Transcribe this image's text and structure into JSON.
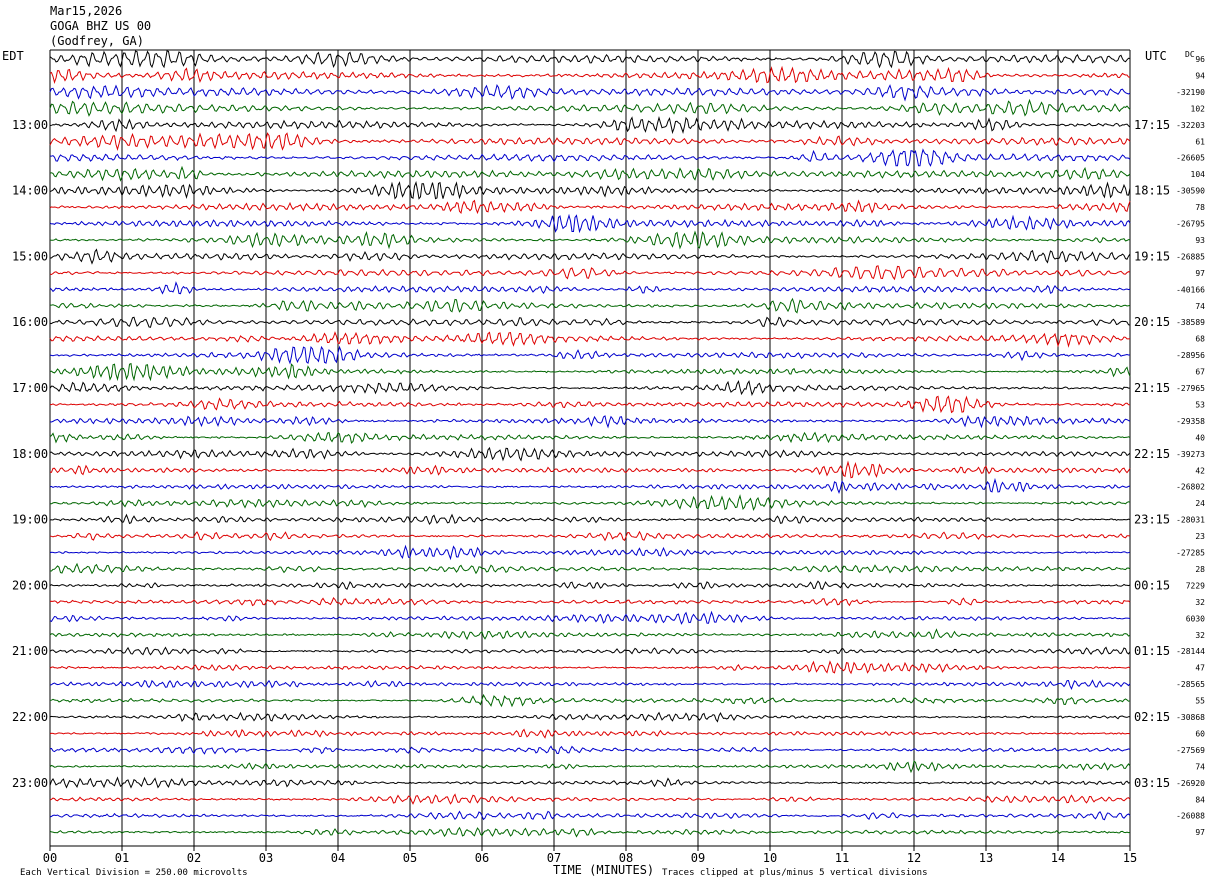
{
  "header": {
    "date": "Mar15,2026",
    "station": "GOGA BHZ US 00",
    "location": "(Godfrey, GA)"
  },
  "left_zone_label": "EDT",
  "right_zone_label": "UTC",
  "dc_label": "DC",
  "footer": {
    "scale_note": "Each Vertical Division =  250.00 microvolts",
    "axis_title": "TIME (MINUTES)",
    "clip_note": "Traces clipped at plus/minus 5 vertical divisions"
  },
  "chart_data": {
    "type": "line",
    "title": "",
    "xlabel": "TIME (MINUTES)",
    "ylabel": "",
    "xlim": [
      0,
      15
    ],
    "x_ticks": [
      "00",
      "01",
      "02",
      "03",
      "04",
      "05",
      "06",
      "07",
      "08",
      "09",
      "10",
      "11",
      "12",
      "13",
      "14",
      "15"
    ],
    "rows_per_hour": 4,
    "trace_count": 48,
    "trace_colors": [
      "#000000",
      "#dd0000",
      "#0000cc",
      "#006600"
    ],
    "left_hour_labels": [
      "13:00",
      "14:00",
      "15:00",
      "16:00",
      "17:00",
      "18:00",
      "19:00",
      "20:00",
      "21:00",
      "22:00",
      "23:00"
    ],
    "right_hour_labels": [
      "17:15",
      "18:15",
      "19:15",
      "20:15",
      "21:15",
      "22:15",
      "23:15",
      "00:15",
      "01:15",
      "02:15",
      "03:15"
    ],
    "dc_offsets": [
      "96",
      "94",
      "-32190",
      "102",
      "-32203",
      "61",
      "-26605",
      "104",
      "-30590",
      "78",
      "-26795",
      "93",
      "-26885",
      "97",
      "-40166",
      "74",
      "-38589",
      "68",
      "-28956",
      "67",
      "-27965",
      "53",
      "-29358",
      "40",
      "-39273",
      "42",
      "-26802",
      "24",
      "-28031",
      "23",
      "-27285",
      "28",
      "7229",
      "32",
      "6030",
      "32",
      "-28144",
      "47",
      "-28565",
      "55",
      "-30868",
      "60",
      "-27569",
      "74",
      "-26920",
      "84",
      "-26088",
      "97"
    ]
  }
}
